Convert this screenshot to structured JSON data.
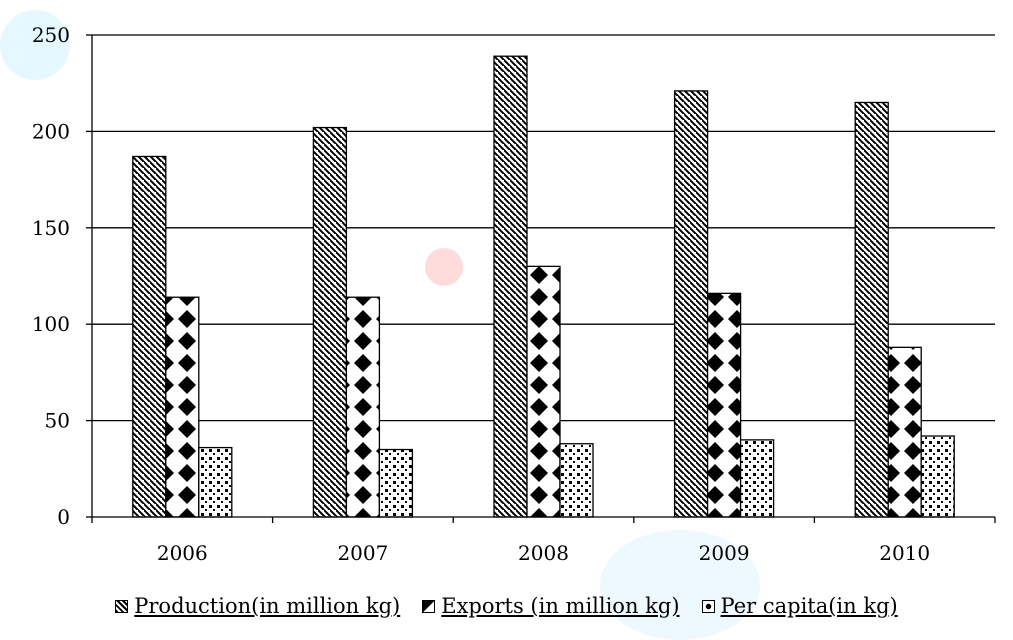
{
  "chart_data": {
    "type": "bar",
    "categories": [
      "2006",
      "2007",
      "2008",
      "2009",
      "2010"
    ],
    "series": [
      {
        "name": "Production(in million kg)",
        "values": [
          187,
          202,
          239,
          221,
          215
        ],
        "pattern": "diagonal-stripes"
      },
      {
        "name": "Exports (in million kg)",
        "values": [
          114,
          114,
          130,
          116,
          88
        ],
        "pattern": "diamonds"
      },
      {
        "name": "Per capita(in kg)",
        "values": [
          36,
          35,
          38,
          40,
          42
        ],
        "pattern": "dots"
      }
    ],
    "y_ticks": [
      "0",
      "50",
      "100",
      "150",
      "200",
      "250"
    ],
    "ylim": [
      0,
      250
    ],
    "grid": true,
    "legend_position": "bottom",
    "title": "",
    "xlabel": "",
    "ylabel": ""
  },
  "colors": {
    "bar_fill": "#ffffff",
    "bar_ink": "#000000",
    "grid": "#000000"
  }
}
